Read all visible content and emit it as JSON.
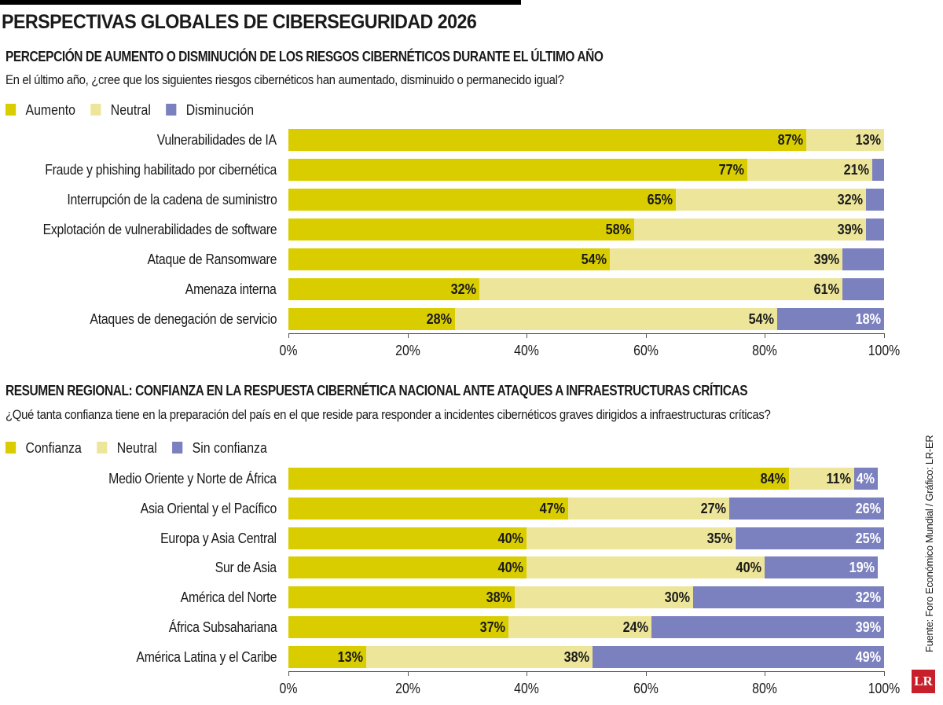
{
  "title": "PERSPECTIVAS GLOBALES DE CIBERSEGURIDAD 2026",
  "source": "Fuente: Foro Económico Mundial / Gráfico: LR-ER",
  "logo": "LR",
  "colors": {
    "primary": "#d9cd00",
    "neutral": "#ede69a",
    "negative": "#7b80bf"
  },
  "chart_data": [
    {
      "type": "bar",
      "stacked": true,
      "orientation": "horizontal",
      "title": "PERCEPCIÓN DE AUMENTO O DISMINUCIÓN DE LOS RIESGOS CIBERNÉTICOS DURANTE EL ÚLTIMO AÑO",
      "subtitle": "En el último año, ¿cree que los siguientes riesgos cibernéticos han aumentado, disminuido o permanecido igual?",
      "categories": [
        "Vulnerabilidades de IA",
        "Fraude y phishing habilitado por cibernética",
        "Interrupción de la cadena de suministro",
        "Explotación de vulnerabilidades de software",
        "Ataque de Ransomware",
        "Amenaza interna",
        "Ataques de denegación de servicio"
      ],
      "series": [
        {
          "name": "Aumento",
          "values": [
            87,
            77,
            65,
            58,
            54,
            32,
            28
          ],
          "labels": [
            "87%",
            "77%",
            "65%",
            "58%",
            "54%",
            "32%",
            "28%"
          ]
        },
        {
          "name": "Neutral",
          "values": [
            13,
            21,
            32,
            39,
            39,
            61,
            54
          ],
          "labels": [
            "13%",
            "21%",
            "32%",
            "39%",
            "39%",
            "61%",
            "54%"
          ]
        },
        {
          "name": "Disminución",
          "values": [
            0,
            2,
            3,
            3,
            7,
            7,
            18
          ],
          "labels": [
            null,
            null,
            null,
            null,
            null,
            null,
            "18%"
          ]
        }
      ],
      "xlim": [
        0,
        100
      ],
      "xticks": [
        "0%",
        "20%",
        "40%",
        "60%",
        "80%",
        "100%"
      ],
      "legend": "top-left"
    },
    {
      "type": "bar",
      "stacked": true,
      "orientation": "horizontal",
      "title": "RESUMEN REGIONAL: CONFIANZA EN LA RESPUESTA CIBERNÉTICA NACIONAL ANTE ATAQUES A INFRAESTRUCTURAS CRÍTICAS",
      "subtitle": "¿Qué tanta confianza tiene en la preparación del país en el que reside para responder a incidentes cibernéticos graves dirigidos a infraestructuras críticas?",
      "categories": [
        "Medio Oriente y Norte de África",
        "Asia Oriental y el Pacífico",
        "Europa y Asia Central",
        "Sur de Asia",
        "América del Norte",
        "África Subsahariana",
        "América Latina y el Caribe"
      ],
      "series": [
        {
          "name": "Confianza",
          "values": [
            84,
            47,
            40,
            40,
            38,
            37,
            13
          ],
          "labels": [
            "84%",
            "47%",
            "40%",
            "40%",
            "38%",
            "37%",
            "13%"
          ]
        },
        {
          "name": "Neutral",
          "values": [
            11,
            27,
            35,
            40,
            30,
            24,
            38
          ],
          "labels": [
            "11%",
            "27%",
            "35%",
            "40%",
            "30%",
            "24%",
            "38%"
          ]
        },
        {
          "name": "Sin confianza",
          "values": [
            4,
            26,
            25,
            19,
            32,
            39,
            49
          ],
          "labels": [
            "4%",
            "26%",
            "25%",
            "19%",
            "32%",
            "39%",
            "49%"
          ]
        }
      ],
      "xlim": [
        0,
        100
      ],
      "xticks": [
        "0%",
        "20%",
        "40%",
        "60%",
        "80%",
        "100%"
      ],
      "legend": "top-left"
    }
  ]
}
